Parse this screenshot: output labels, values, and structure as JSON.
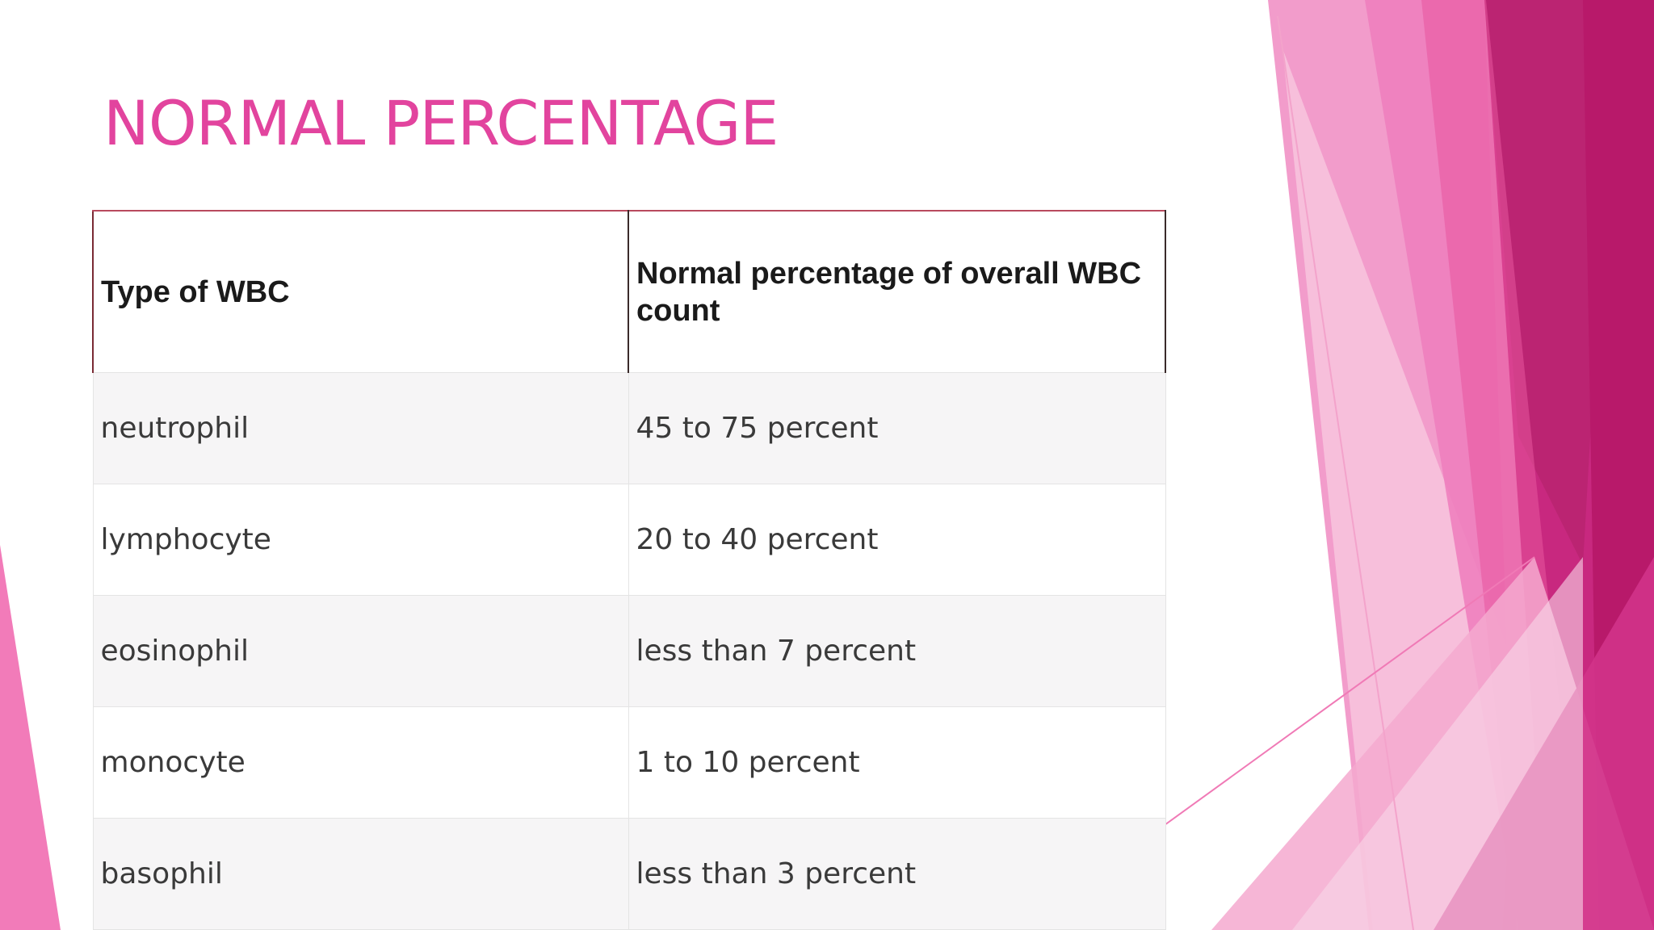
{
  "slide": {
    "title": "NORMAL PERCENTAGE",
    "accent_color": "#e2449e"
  },
  "table": {
    "headers": [
      "Type of WBC",
      "Normal percentage of overall WBC count"
    ],
    "rows": [
      [
        "neutrophil",
        "45 to 75 percent"
      ],
      [
        "lymphocyte",
        "20 to 40 percent"
      ],
      [
        "eosinophil",
        "less than 7 percent"
      ],
      [
        "monocyte",
        "1 to 10 percent"
      ],
      [
        "basophil",
        "less than 3 percent"
      ]
    ]
  }
}
